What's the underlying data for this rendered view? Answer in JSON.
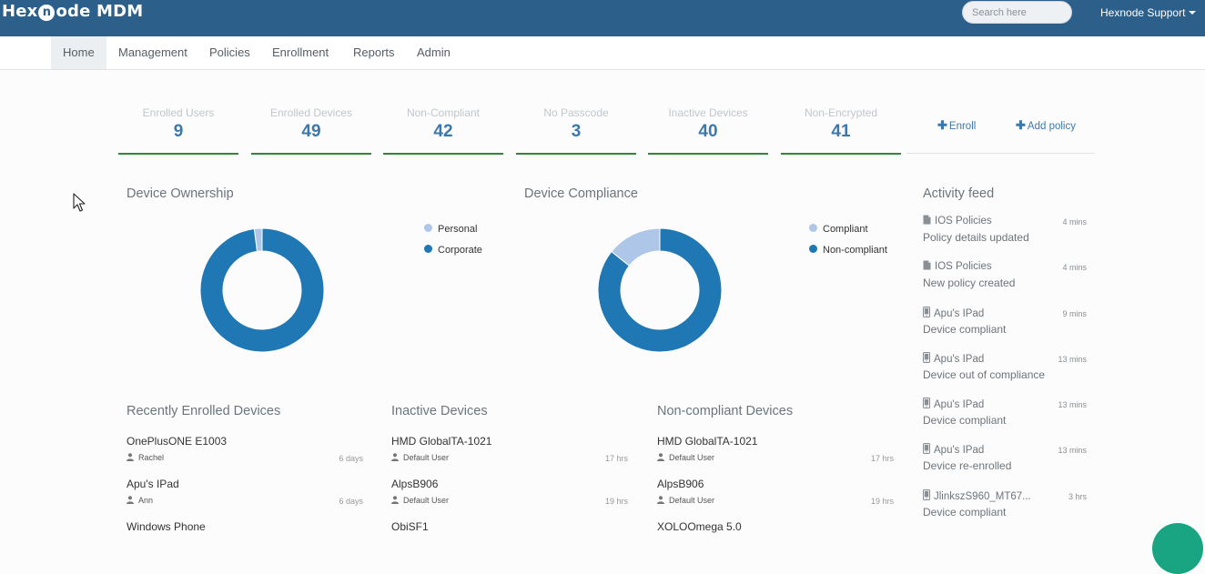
{
  "app": {
    "logo_pre": "Hex",
    "logo_o": "n",
    "logo_post": "ode MDM"
  },
  "search": {
    "placeholder": "Search here"
  },
  "account": {
    "label": "Hexnode Support"
  },
  "nav": [
    "Home",
    "Management",
    "Policies",
    "Enrollment",
    "Reports",
    "Admin"
  ],
  "stats": [
    {
      "label": "Enrolled Users",
      "value": "9"
    },
    {
      "label": "Enrolled Devices",
      "value": "49"
    },
    {
      "label": "Non-Compliant",
      "value": "42"
    },
    {
      "label": "No Passcode",
      "value": "3"
    },
    {
      "label": "Inactive Devices",
      "value": "40"
    },
    {
      "label": "Non-Encrypted",
      "value": "41"
    }
  ],
  "actions": {
    "enroll": "Enroll",
    "add_policy": "Add policy"
  },
  "ownership": {
    "title": "Device Ownership",
    "legend": [
      "Personal",
      "Corporate"
    ],
    "chart_data": {
      "type": "pie",
      "categories": [
        "Personal",
        "Corporate"
      ],
      "values": [
        1,
        48
      ],
      "colors": [
        "#aec7e8",
        "#1f77b4"
      ]
    }
  },
  "compliance": {
    "title": "Device Compliance",
    "legend": [
      "Compliant",
      "Non-compliant"
    ],
    "chart_data": {
      "type": "pie",
      "categories": [
        "Compliant",
        "Non-compliant"
      ],
      "values": [
        7,
        42
      ],
      "colors": [
        "#aec7e8",
        "#1f77b4"
      ]
    }
  },
  "recent": {
    "title": "Recently Enrolled Devices",
    "items": [
      {
        "name": "OnePlusONE E1003",
        "user": "Rachel",
        "time": "6 days"
      },
      {
        "name": "Apu's IPad",
        "user": "Ann",
        "time": "6 days"
      },
      {
        "name": "Windows Phone",
        "user": "",
        "time": ""
      }
    ]
  },
  "inactive": {
    "title": "Inactive Devices",
    "items": [
      {
        "name": "HMD GlobalTA-1021",
        "user": "Default User",
        "time": "17 hrs"
      },
      {
        "name": "AlpsB906",
        "user": "Default User",
        "time": "19 hrs"
      },
      {
        "name": "ObiSF1",
        "user": "",
        "time": ""
      }
    ]
  },
  "noncompliant": {
    "title": "Non-compliant Devices",
    "items": [
      {
        "name": "HMD GlobalTA-1021",
        "user": "Default User",
        "time": "17 hrs"
      },
      {
        "name": "AlpsB906",
        "user": "Default User",
        "time": "19 hrs"
      },
      {
        "name": "XOLOOmega 5.0",
        "user": "",
        "time": ""
      }
    ]
  },
  "feed": {
    "title": "Activity feed",
    "items": [
      {
        "icon": "document",
        "title": "IOS Policies",
        "desc": "Policy details updated",
        "time": "4 mins"
      },
      {
        "icon": "document",
        "title": "IOS Policies",
        "desc": "New policy created",
        "time": "4 mins"
      },
      {
        "icon": "mobile",
        "title": "Apu's IPad",
        "desc": "Device compliant",
        "time": "9 mins"
      },
      {
        "icon": "mobile",
        "title": "Apu's IPad",
        "desc": "Device out of compliance",
        "time": "13 mins"
      },
      {
        "icon": "mobile",
        "title": "Apu's IPad",
        "desc": "Device compliant",
        "time": "13 mins"
      },
      {
        "icon": "mobile",
        "title": "Apu's IPad",
        "desc": "Device re-enrolled",
        "time": "13 mins"
      },
      {
        "icon": "mobile",
        "title": "JlinkszS960_MT67...",
        "desc": "Device compliant",
        "time": "3 hrs"
      }
    ]
  }
}
